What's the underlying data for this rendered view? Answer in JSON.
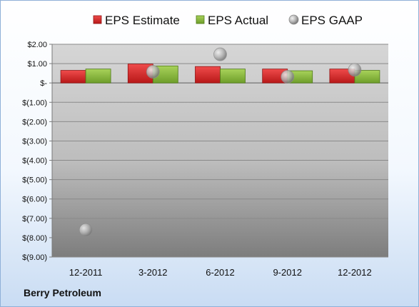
{
  "company": "Berry Petroleum",
  "colors": {
    "estimate": "#d42a2a",
    "actual": "#8cbd3f",
    "gaap": "#a6a6a6"
  },
  "chart_data": {
    "type": "bar",
    "title": "",
    "xlabel": "",
    "ylabel": "",
    "categories": [
      "12-2011",
      "3-2012",
      "6-2012",
      "9-2012",
      "12-2012"
    ],
    "series": [
      {
        "name": "EPS Estimate",
        "kind": "bar",
        "values": [
          0.65,
          0.98,
          0.85,
          0.72,
          0.72
        ]
      },
      {
        "name": "EPS Actual",
        "kind": "bar",
        "values": [
          0.72,
          0.88,
          0.72,
          0.63,
          0.65
        ]
      },
      {
        "name": "EPS GAAP",
        "kind": "marker",
        "values": [
          -7.6,
          0.58,
          1.48,
          0.32,
          0.68
        ]
      }
    ],
    "ylim": [
      -9,
      2
    ],
    "yticks": [
      2,
      1,
      0,
      -1,
      -2,
      -3,
      -4,
      -5,
      -6,
      -7,
      -8,
      -9
    ],
    "ytick_labels": [
      "$2.00",
      "$1.00",
      "$-",
      "$(1.00)",
      "$(2.00)",
      "$(3.00)",
      "$(4.00)",
      "$(5.00)",
      "$(6.00)",
      "$(7.00)",
      "$(8.00)",
      "$(9.00)"
    ],
    "grid": true,
    "legend": "top"
  }
}
